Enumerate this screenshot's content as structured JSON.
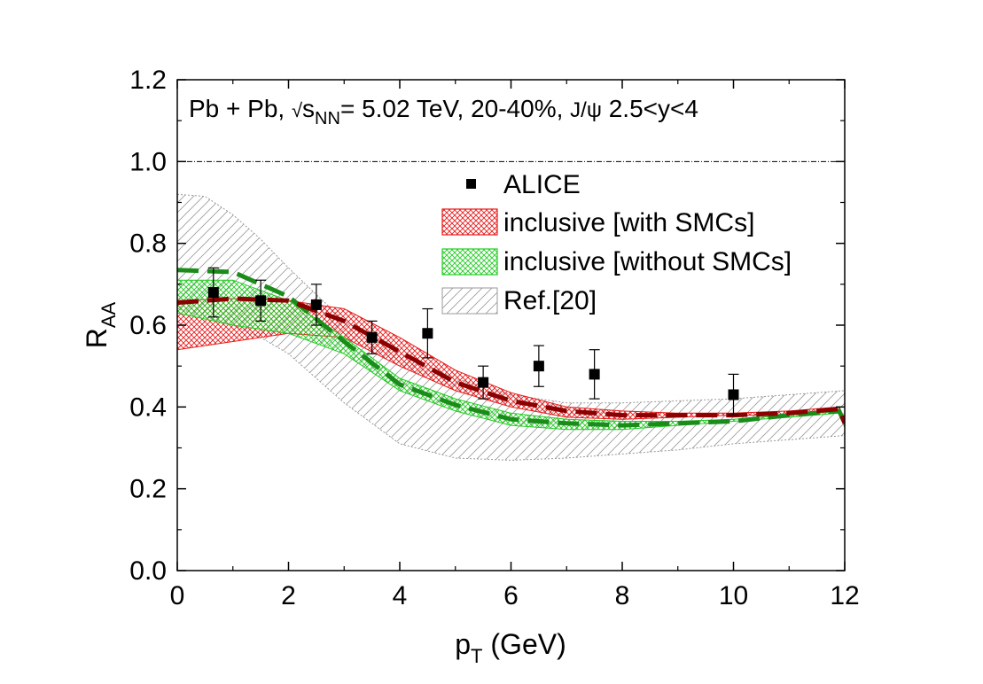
{
  "chart_data": {
    "type": "line",
    "annotation": {
      "system": "Pb + Pb, ",
      "sqrt": "√",
      "s": "s",
      "s_sub": "NN",
      "energy": "= 5.02 TeV, 20-40%, ",
      "particle": "J/ψ",
      "rapidity": " 2.5<y<4"
    },
    "xlabel": {
      "main": "p",
      "sub": "T",
      "unit": " (GeV)"
    },
    "ylabel": {
      "main": "R",
      "sub": "AA"
    },
    "xlim": [
      0,
      12
    ],
    "ylim": [
      0,
      1.2
    ],
    "xticks": [
      "0",
      "2",
      "4",
      "6",
      "8",
      "10",
      "12"
    ],
    "yticks": [
      "0.0",
      "0.2",
      "0.4",
      "0.6",
      "0.8",
      "1.0",
      "1.2"
    ],
    "reference_line": 1.0,
    "legend_position": "upper-center",
    "colors": {
      "with_smcs": "#e8191b",
      "with_smcs_line": "#8b0000",
      "without_smcs": "#22cc22",
      "without_smcs_line": "#1a8c1a",
      "ref": "#9a9a9a",
      "points": "#000000"
    },
    "series": [
      {
        "name": "ALICE",
        "kind": "points",
        "x": [
          0.65,
          1.5,
          2.5,
          3.5,
          4.5,
          5.5,
          6.5,
          7.5,
          10.0
        ],
        "y": [
          0.68,
          0.66,
          0.65,
          0.57,
          0.58,
          0.46,
          0.5,
          0.48,
          0.43
        ],
        "err_high": [
          0.74,
          0.71,
          0.7,
          0.61,
          0.64,
          0.5,
          0.55,
          0.54,
          0.48
        ],
        "err_low": [
          0.62,
          0.61,
          0.6,
          0.53,
          0.52,
          0.42,
          0.45,
          0.42,
          0.38
        ]
      },
      {
        "name": "inclusive [with SMCs]",
        "kind": "band",
        "x": [
          0,
          1,
          2,
          3,
          4,
          5,
          6,
          7,
          8,
          9,
          10,
          11,
          11.9,
          12
        ],
        "upper": [
          0.66,
          0.665,
          0.66,
          0.64,
          0.57,
          0.49,
          0.435,
          0.4,
          0.39,
          0.385,
          0.385,
          0.39,
          0.4,
          0.37
        ],
        "lower": [
          0.54,
          0.56,
          0.58,
          0.57,
          0.5,
          0.44,
          0.4,
          0.375,
          0.37,
          0.375,
          0.38,
          0.38,
          0.39,
          0.35
        ],
        "central": [
          0.655,
          0.665,
          0.66,
          0.61,
          0.535,
          0.46,
          0.415,
          0.39,
          0.38,
          0.38,
          0.38,
          0.385,
          0.395,
          0.36
        ]
      },
      {
        "name": "inclusive [without SMCs]",
        "kind": "band",
        "x": [
          0,
          1,
          2,
          3,
          4,
          5,
          6,
          7,
          8,
          9,
          10,
          11,
          11.9,
          12
        ],
        "upper": [
          0.71,
          0.71,
          0.66,
          0.57,
          0.47,
          0.42,
          0.385,
          0.37,
          0.365,
          0.365,
          0.37,
          0.38,
          0.39,
          0.37
        ],
        "lower": [
          0.63,
          0.6,
          0.58,
          0.53,
          0.44,
          0.39,
          0.355,
          0.345,
          0.345,
          0.355,
          0.365,
          0.375,
          0.385,
          0.35
        ],
        "central": [
          0.735,
          0.73,
          0.67,
          0.56,
          0.455,
          0.405,
          0.37,
          0.36,
          0.355,
          0.36,
          0.365,
          0.38,
          0.39,
          0.36
        ]
      },
      {
        "name": "Ref.[20]",
        "kind": "band",
        "x": [
          0,
          0.5,
          1,
          1.5,
          2,
          3,
          4,
          5,
          6,
          7,
          8,
          9,
          10,
          11,
          12
        ],
        "upper": [
          0.92,
          0.915,
          0.87,
          0.81,
          0.74,
          0.61,
          0.53,
          0.47,
          0.43,
          0.41,
          0.41,
          0.415,
          0.42,
          0.43,
          0.44
        ],
        "lower": [
          0.64,
          0.62,
          0.6,
          0.57,
          0.53,
          0.41,
          0.31,
          0.275,
          0.27,
          0.275,
          0.285,
          0.295,
          0.31,
          0.32,
          0.33
        ]
      }
    ]
  }
}
